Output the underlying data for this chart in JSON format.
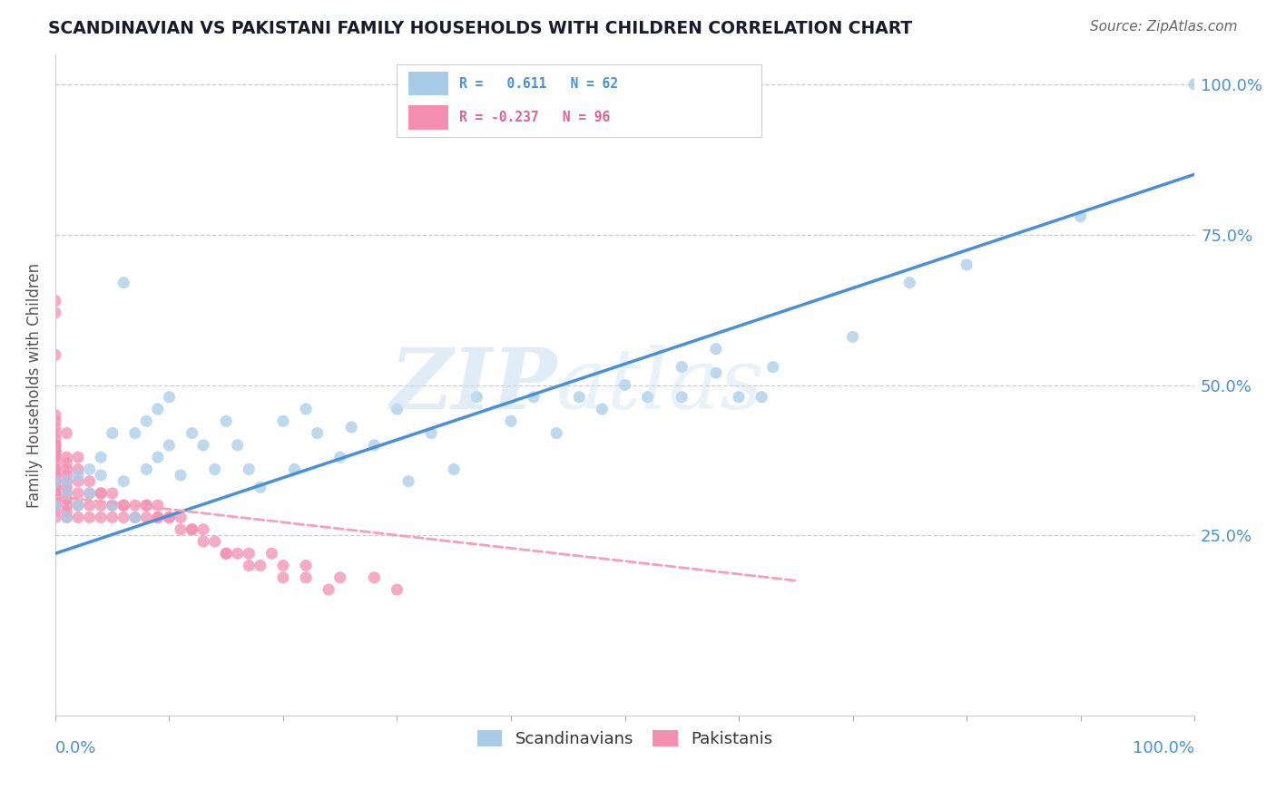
{
  "title": "SCANDINAVIAN VS PAKISTANI FAMILY HOUSEHOLDS WITH CHILDREN CORRELATION CHART",
  "source": "Source: ZipAtlas.com",
  "ylabel": "Family Households with Children",
  "legend_scand": "Scandinavians",
  "legend_pak": "Pakistanis",
  "scand_color": "#a8cce8",
  "pak_color": "#f48fb1",
  "scand_line_color": "#4a90d9",
  "pak_line_color": "#f4a0b8",
  "watermark1": "ZIP",
  "watermark2": "atlas",
  "ytick_labels": [
    "100.0%",
    "75.0%",
    "50.0%",
    "25.0%"
  ],
  "ytick_values": [
    1.0,
    0.75,
    0.5,
    0.25
  ],
  "xlim": [
    0.0,
    1.0
  ],
  "ylim": [
    -0.05,
    1.05
  ],
  "scand_line_x0": 0.0,
  "scand_line_y0": 0.22,
  "scand_line_x1": 1.0,
  "scand_line_y1": 0.85,
  "pak_line_x0": 0.0,
  "pak_line_y0": 0.315,
  "pak_line_x1": 0.65,
  "pak_line_y1": 0.175,
  "scand_points_x": [
    0.0,
    0.0,
    0.01,
    0.01,
    0.01,
    0.02,
    0.02,
    0.03,
    0.03,
    0.04,
    0.04,
    0.05,
    0.05,
    0.06,
    0.06,
    0.07,
    0.07,
    0.08,
    0.08,
    0.09,
    0.09,
    0.1,
    0.1,
    0.11,
    0.12,
    0.13,
    0.14,
    0.15,
    0.16,
    0.17,
    0.18,
    0.2,
    0.21,
    0.22,
    0.23,
    0.25,
    0.26,
    0.28,
    0.3,
    0.31,
    0.33,
    0.35,
    0.37,
    0.4,
    0.42,
    0.44,
    0.46,
    0.48,
    0.5,
    0.52,
    0.55,
    0.58,
    0.6,
    0.63,
    0.55,
    0.58,
    0.62,
    0.7,
    0.75,
    0.8,
    0.9,
    1.0
  ],
  "scand_points_y": [
    0.3,
    0.34,
    0.28,
    0.32,
    0.34,
    0.3,
    0.35,
    0.32,
    0.36,
    0.35,
    0.38,
    0.3,
    0.42,
    0.34,
    0.67,
    0.28,
    0.42,
    0.36,
    0.44,
    0.38,
    0.46,
    0.4,
    0.48,
    0.35,
    0.42,
    0.4,
    0.36,
    0.44,
    0.4,
    0.36,
    0.33,
    0.44,
    0.36,
    0.46,
    0.42,
    0.38,
    0.43,
    0.4,
    0.46,
    0.34,
    0.42,
    0.36,
    0.48,
    0.44,
    0.48,
    0.42,
    0.48,
    0.46,
    0.5,
    0.48,
    0.53,
    0.56,
    0.48,
    0.53,
    0.48,
    0.52,
    0.48,
    0.58,
    0.67,
    0.7,
    0.78,
    1.0
  ],
  "pak_points_x": [
    0.0,
    0.0,
    0.0,
    0.0,
    0.0,
    0.0,
    0.0,
    0.0,
    0.0,
    0.0,
    0.0,
    0.0,
    0.0,
    0.0,
    0.0,
    0.0,
    0.0,
    0.0,
    0.0,
    0.0,
    0.0,
    0.0,
    0.0,
    0.0,
    0.0,
    0.0,
    0.0,
    0.0,
    0.0,
    0.0,
    0.0,
    0.0,
    0.01,
    0.01,
    0.01,
    0.01,
    0.01,
    0.01,
    0.01,
    0.01,
    0.01,
    0.01,
    0.01,
    0.01,
    0.02,
    0.02,
    0.02,
    0.02,
    0.02,
    0.02,
    0.03,
    0.03,
    0.03,
    0.03,
    0.04,
    0.04,
    0.04,
    0.05,
    0.05,
    0.06,
    0.06,
    0.07,
    0.07,
    0.08,
    0.08,
    0.09,
    0.09,
    0.1,
    0.11,
    0.11,
    0.12,
    0.13,
    0.14,
    0.15,
    0.16,
    0.17,
    0.18,
    0.2,
    0.22,
    0.24,
    0.04,
    0.05,
    0.06,
    0.08,
    0.09,
    0.1,
    0.12,
    0.13,
    0.15,
    0.17,
    0.19,
    0.2,
    0.22,
    0.25,
    0.28,
    0.3
  ],
  "pak_points_y": [
    0.28,
    0.29,
    0.3,
    0.3,
    0.31,
    0.31,
    0.32,
    0.32,
    0.33,
    0.33,
    0.34,
    0.34,
    0.35,
    0.35,
    0.36,
    0.36,
    0.37,
    0.38,
    0.38,
    0.39,
    0.39,
    0.4,
    0.4,
    0.42,
    0.44,
    0.62,
    0.64,
    0.55,
    0.45,
    0.43,
    0.41,
    0.39,
    0.28,
    0.29,
    0.3,
    0.31,
    0.32,
    0.33,
    0.34,
    0.35,
    0.36,
    0.37,
    0.38,
    0.42,
    0.28,
    0.3,
    0.32,
    0.34,
    0.36,
    0.38,
    0.28,
    0.3,
    0.32,
    0.34,
    0.28,
    0.3,
    0.32,
    0.28,
    0.3,
    0.28,
    0.3,
    0.28,
    0.3,
    0.28,
    0.3,
    0.28,
    0.3,
    0.28,
    0.26,
    0.28,
    0.26,
    0.24,
    0.24,
    0.22,
    0.22,
    0.2,
    0.2,
    0.18,
    0.18,
    0.16,
    0.32,
    0.32,
    0.3,
    0.3,
    0.28,
    0.28,
    0.26,
    0.26,
    0.22,
    0.22,
    0.22,
    0.2,
    0.2,
    0.18,
    0.18,
    0.16
  ]
}
